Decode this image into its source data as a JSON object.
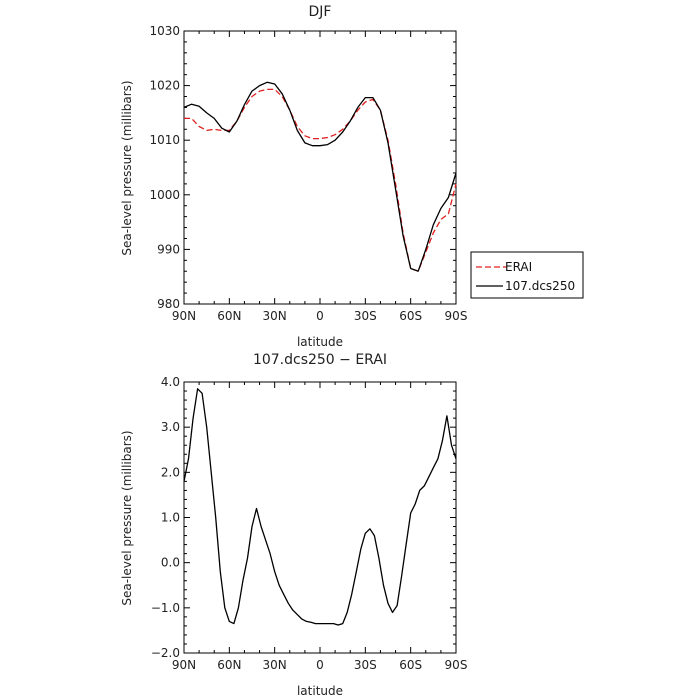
{
  "chart_data": [
    {
      "type": "line",
      "title": "DJF",
      "xlabel": "latitude",
      "ylabel": "Sea-level pressure (millibars)",
      "xlim": [
        90,
        -90
      ],
      "ylim": [
        980,
        1030
      ],
      "xticks": [
        90,
        60,
        30,
        0,
        -30,
        -60,
        -90
      ],
      "xtick_labels": [
        "90N",
        "60N",
        "30N",
        "0",
        "30S",
        "60S",
        "90S"
      ],
      "yticks": [
        980,
        990,
        1000,
        1010,
        1020,
        1030
      ],
      "ytick_labels": [
        "980",
        "990",
        "1000",
        "1010",
        "1020",
        "1030"
      ],
      "grid": false,
      "legend_position": "right",
      "series": [
        {
          "name": "ERAI",
          "color": "#e02020",
          "dash": "dashed",
          "x": [
            90,
            85,
            80,
            75,
            70,
            65,
            60,
            55,
            50,
            45,
            40,
            35,
            30,
            25,
            20,
            15,
            10,
            5,
            0,
            -5,
            -10,
            -15,
            -20,
            -25,
            -30,
            -35,
            -40,
            -45,
            -50,
            -55,
            -60,
            -65,
            -70,
            -75,
            -80,
            -85,
            -90
          ],
          "values": [
            1014.0,
            1014.0,
            1012.5,
            1011.8,
            1012.0,
            1011.8,
            1011.8,
            1013.5,
            1016.0,
            1018.0,
            1019.0,
            1019.3,
            1019.3,
            1018.0,
            1015.5,
            1012.5,
            1010.8,
            1010.3,
            1010.3,
            1010.5,
            1011.0,
            1012.0,
            1013.5,
            1015.5,
            1017.0,
            1017.5,
            1015.5,
            1010.0,
            1002.0,
            993.0,
            986.5,
            986.0,
            989.5,
            993.0,
            995.5,
            996.5,
            1002.0
          ]
        },
        {
          "name": "107.dcs250",
          "color": "#000000",
          "dash": "solid",
          "x": [
            90,
            85,
            80,
            75,
            70,
            65,
            60,
            55,
            50,
            45,
            40,
            35,
            30,
            25,
            20,
            15,
            10,
            5,
            0,
            -5,
            -10,
            -15,
            -20,
            -25,
            -30,
            -35,
            -40,
            -45,
            -50,
            -55,
            -60,
            -65,
            -70,
            -75,
            -80,
            -85,
            -90
          ],
          "values": [
            1016.0,
            1016.6,
            1016.2,
            1015.0,
            1014.0,
            1012.2,
            1011.5,
            1013.5,
            1016.5,
            1019.0,
            1020.0,
            1020.6,
            1020.3,
            1018.5,
            1015.5,
            1011.8,
            1009.5,
            1009.0,
            1009.0,
            1009.2,
            1010.0,
            1011.5,
            1013.5,
            1016.0,
            1017.8,
            1017.8,
            1015.5,
            1009.5,
            1001.0,
            992.5,
            986.5,
            986.0,
            990.0,
            994.5,
            997.5,
            999.5,
            1004.0
          ]
        }
      ]
    },
    {
      "type": "line",
      "title": "107.dcs250 − ERAI",
      "xlabel": "latitude",
      "ylabel": "Sea-level pressure (millibars)",
      "xlim": [
        90,
        -90
      ],
      "ylim": [
        -2.0,
        4.0
      ],
      "xticks": [
        90,
        60,
        30,
        0,
        -30,
        -60,
        -90
      ],
      "xtick_labels": [
        "90N",
        "60N",
        "30N",
        "0",
        "30S",
        "60S",
        "90S"
      ],
      "yticks": [
        -2.0,
        -1.0,
        0.0,
        1.0,
        2.0,
        3.0,
        4.0
      ],
      "ytick_labels": [
        "−2.0",
        "−1.0",
        "0.0",
        "1.0",
        "2.0",
        "3.0",
        "4.0"
      ],
      "grid": false,
      "series": [
        {
          "color": "#000000",
          "dash": "solid",
          "x": [
            90,
            87,
            84,
            81,
            78,
            75,
            72,
            69,
            66,
            63,
            60,
            57,
            54,
            51,
            48,
            45,
            42,
            39,
            36,
            33,
            30,
            27,
            24,
            21,
            18,
            15,
            12,
            9,
            6,
            3,
            0,
            -3,
            -6,
            -9,
            -12,
            -15,
            -18,
            -21,
            -24,
            -27,
            -30,
            -33,
            -36,
            -39,
            -42,
            -45,
            -48,
            -51,
            -54,
            -57,
            -60,
            -63,
            -66,
            -69,
            -72,
            -75,
            -78,
            -81,
            -84,
            -87,
            -90
          ],
          "values": [
            1.8,
            2.3,
            3.2,
            3.85,
            3.75,
            3.0,
            2.0,
            1.0,
            -0.2,
            -1.0,
            -1.3,
            -1.35,
            -1.0,
            -0.4,
            0.1,
            0.8,
            1.2,
            0.8,
            0.5,
            0.2,
            -0.2,
            -0.5,
            -0.7,
            -0.9,
            -1.05,
            -1.15,
            -1.25,
            -1.3,
            -1.32,
            -1.35,
            -1.35,
            -1.35,
            -1.35,
            -1.35,
            -1.38,
            -1.35,
            -1.1,
            -0.7,
            -0.2,
            0.3,
            0.65,
            0.75,
            0.6,
            0.1,
            -0.5,
            -0.9,
            -1.1,
            -0.95,
            -0.3,
            0.4,
            1.1,
            1.3,
            1.6,
            1.7,
            1.9,
            2.1,
            2.3,
            2.7,
            3.25,
            2.6,
            2.3
          ]
        }
      ]
    }
  ]
}
